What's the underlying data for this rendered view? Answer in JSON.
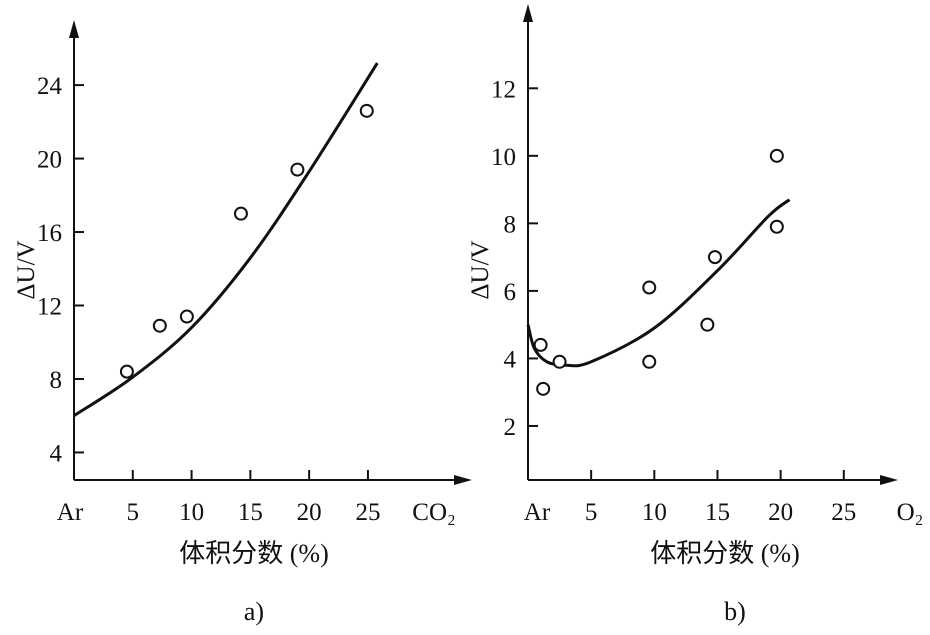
{
  "chart_data": [
    {
      "type": "scatter",
      "panel_label": "a)",
      "ylabel": "ΔU/V",
      "xlabel": "体积分数 (%)",
      "x_start_label": "Ar",
      "x_end_label": "CO₂",
      "xticks": [
        5,
        10,
        15,
        20,
        25
      ],
      "yticks": [
        4,
        8,
        12,
        16,
        20,
        24
      ],
      "xlim": [
        0,
        33
      ],
      "ylim": [
        2.5,
        27
      ],
      "points": [
        {
          "x": 4.5,
          "y": 8.4
        },
        {
          "x": 7.3,
          "y": 10.9
        },
        {
          "x": 9.6,
          "y": 11.4
        },
        {
          "x": 14.2,
          "y": 17.0
        },
        {
          "x": 19.0,
          "y": 19.4
        },
        {
          "x": 24.9,
          "y": 22.6
        }
      ],
      "fit_curve": [
        {
          "x": 0,
          "y": 6.0
        },
        {
          "x": 5,
          "y": 8.1
        },
        {
          "x": 10,
          "y": 10.8
        },
        {
          "x": 15,
          "y": 14.6
        },
        {
          "x": 20,
          "y": 19.3
        },
        {
          "x": 25.8,
          "y": 25.2
        }
      ]
    },
    {
      "type": "scatter",
      "panel_label": "b)",
      "ylabel": "ΔU/V",
      "xlabel": "体积分数 (%)",
      "x_start_label": "Ar",
      "x_end_label": "O₂",
      "xticks": [
        5,
        10,
        15,
        20,
        25
      ],
      "yticks": [
        2,
        4,
        6,
        8,
        10,
        12
      ],
      "xlim": [
        0,
        28.5
      ],
      "ylim": [
        0.4,
        14.2
      ],
      "points": [
        {
          "x": 1.0,
          "y": 4.4
        },
        {
          "x": 1.2,
          "y": 3.1
        },
        {
          "x": 2.5,
          "y": 3.9
        },
        {
          "x": 9.6,
          "y": 6.1
        },
        {
          "x": 9.6,
          "y": 3.9
        },
        {
          "x": 14.2,
          "y": 5.0
        },
        {
          "x": 14.8,
          "y": 7.0
        },
        {
          "x": 19.7,
          "y": 10.0
        },
        {
          "x": 19.7,
          "y": 7.9
        }
      ],
      "fit_curve": [
        {
          "x": 0,
          "y": 5.0
        },
        {
          "x": 0.5,
          "y": 4.3
        },
        {
          "x": 1.5,
          "y": 3.9
        },
        {
          "x": 3.0,
          "y": 3.8
        },
        {
          "x": 5.0,
          "y": 3.9
        },
        {
          "x": 10.0,
          "y": 4.9
        },
        {
          "x": 15.0,
          "y": 6.6
        },
        {
          "x": 19.0,
          "y": 8.2
        },
        {
          "x": 20.7,
          "y": 8.7
        }
      ]
    }
  ]
}
